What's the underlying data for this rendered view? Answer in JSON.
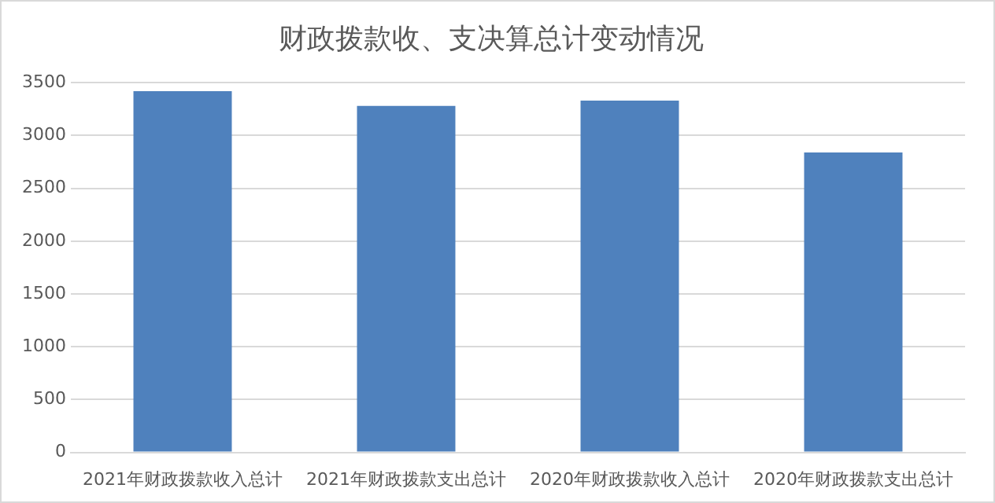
{
  "chart_data": {
    "type": "bar",
    "title": "财政拨款收、支决算总计变动情况",
    "categories": [
      "2021年财政拨款收入总计",
      "2021年财政拨款支出总计",
      "2020年财政拨款收入总计",
      "2020年财政拨款支出总计"
    ],
    "values": [
      3420,
      3280,
      3330,
      2840
    ],
    "color": "#4f81bd",
    "ylim": [
      0,
      3500
    ],
    "yticks": [
      0,
      500,
      1000,
      1500,
      2000,
      2500,
      3000,
      3500
    ],
    "grid": "y",
    "legend": false
  }
}
